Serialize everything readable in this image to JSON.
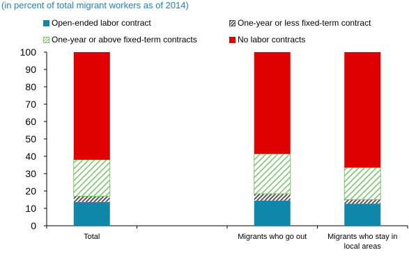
{
  "subtitle": "(in percent of total migrant workers as of 2014)",
  "chart_data": {
    "type": "bar",
    "stacked": true,
    "categories": [
      "Total",
      "",
      "Migrants who go out",
      "Migrants who stay in local areas"
    ],
    "series": [
      {
        "name": "Open-ended labor contract",
        "values": [
          13.7,
          null,
          14.5,
          12.7
        ],
        "color": "#0f87a8",
        "pattern": "solid"
      },
      {
        "name": "One-year or less fixed-term contract",
        "values": [
          3.3,
          null,
          3.9,
          2.4
        ],
        "color": "#595959",
        "pattern": "dense-hatch"
      },
      {
        "name": "One-year or above fixed-term contracts",
        "values": [
          21.0,
          null,
          23.0,
          18.4
        ],
        "color": "#7cc46c",
        "pattern": "light-hatch"
      },
      {
        "name": "No labor contracts",
        "values": [
          62.0,
          null,
          58.6,
          66.5
        ],
        "color": "#e00000",
        "pattern": "solid"
      }
    ],
    "ylim": [
      0,
      100
    ],
    "yticks": [
      "0",
      "10",
      "20",
      "30",
      "40",
      "50",
      "60",
      "70",
      "80",
      "90",
      "100"
    ],
    "grid": false,
    "legend_position": "top"
  }
}
